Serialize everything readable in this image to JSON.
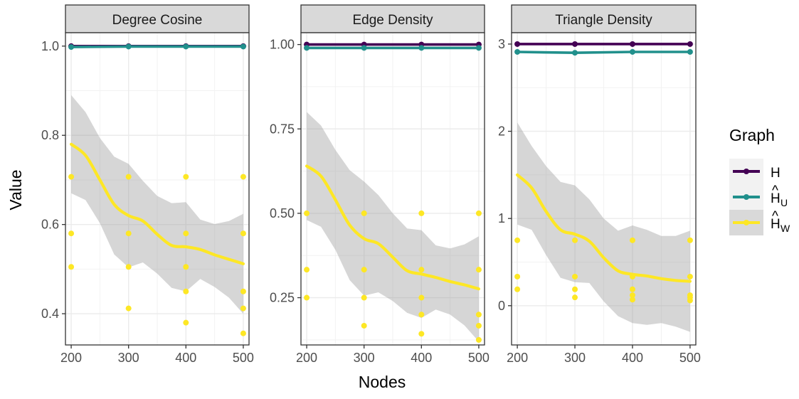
{
  "chart_data": {
    "type": "line",
    "xlabel": "Nodes",
    "ylabel": "Value",
    "legend": {
      "title": "Graph",
      "position": "right",
      "entries": [
        {
          "base": "H",
          "hat": false,
          "sub": "",
          "color": "#440154"
        },
        {
          "base": "H",
          "hat": true,
          "sub": "U",
          "color": "#21908C"
        },
        {
          "base": "H",
          "hat": true,
          "sub": "W",
          "color": "#FDE725"
        }
      ]
    },
    "panels": [
      {
        "title": "Degree Cosine",
        "xlim": [
          190,
          510
        ],
        "ylim": [
          0.33,
          1.03
        ],
        "xticks": [
          200,
          300,
          400,
          500
        ],
        "yticks": [
          0.4,
          0.6,
          0.8,
          1.0
        ],
        "ytick_labels": [
          "0.4",
          "0.6",
          "0.8",
          "1.0"
        ],
        "H": {
          "x": [
            200,
            300,
            400,
            500
          ],
          "y": [
            1.0,
            1.0,
            1.0,
            1.0
          ]
        },
        "HU": {
          "x": [
            200,
            300,
            400,
            500
          ],
          "y": [
            0.998,
            0.999,
            0.999,
            0.999
          ]
        },
        "HW_points": {
          "x": [
            200,
            200,
            200,
            300,
            300,
            300,
            300,
            400,
            400,
            400,
            400,
            400,
            500,
            500,
            500,
            500,
            500
          ],
          "y": [
            0.707,
            0.58,
            0.505,
            0.707,
            0.58,
            0.505,
            0.412,
            0.707,
            0.58,
            0.505,
            0.45,
            0.38,
            0.707,
            0.58,
            0.45,
            0.412,
            0.356
          ]
        },
        "HW_smooth": {
          "x": [
            200,
            225,
            250,
            275,
            300,
            325,
            350,
            375,
            400,
            425,
            450,
            475,
            500
          ],
          "y": [
            0.78,
            0.755,
            0.7,
            0.645,
            0.62,
            0.608,
            0.578,
            0.553,
            0.55,
            0.544,
            0.532,
            0.522,
            0.512
          ]
        },
        "HW_band": {
          "x": [
            200,
            225,
            250,
            275,
            300,
            325,
            350,
            375,
            400,
            425,
            450,
            475,
            500
          ],
          "lower": [
            0.67,
            0.655,
            0.603,
            0.533,
            0.504,
            0.515,
            0.49,
            0.458,
            0.45,
            0.478,
            0.46,
            0.436,
            0.4
          ],
          "upper": [
            0.89,
            0.852,
            0.794,
            0.752,
            0.736,
            0.698,
            0.664,
            0.648,
            0.65,
            0.611,
            0.601,
            0.608,
            0.624
          ]
        }
      },
      {
        "title": "Edge Density",
        "xlim": [
          190,
          510
        ],
        "ylim": [
          0.11,
          1.035
        ],
        "xticks": [
          200,
          300,
          400,
          500
        ],
        "yticks": [
          0.25,
          0.5,
          0.75,
          1.0
        ],
        "ytick_labels": [
          "0.25",
          "0.50",
          "0.75",
          "1.00"
        ],
        "H": {
          "x": [
            200,
            300,
            400,
            500
          ],
          "y": [
            1.0,
            1.0,
            1.0,
            1.0
          ]
        },
        "HU": {
          "x": [
            200,
            300,
            400,
            500
          ],
          "y": [
            0.99,
            0.99,
            0.99,
            0.99
          ]
        },
        "HW_points": {
          "x": [
            200,
            200,
            200,
            300,
            300,
            300,
            300,
            400,
            400,
            400,
            400,
            400,
            500,
            500,
            500,
            500,
            500
          ],
          "y": [
            0.5,
            0.333,
            0.25,
            0.5,
            0.333,
            0.25,
            0.167,
            0.5,
            0.333,
            0.25,
            0.2,
            0.143,
            0.5,
            0.333,
            0.2,
            0.167,
            0.125
          ]
        },
        "HW_smooth": {
          "x": [
            200,
            225,
            250,
            275,
            300,
            325,
            350,
            375,
            400,
            425,
            450,
            475,
            500
          ],
          "y": [
            0.64,
            0.61,
            0.54,
            0.465,
            0.425,
            0.41,
            0.37,
            0.33,
            0.32,
            0.31,
            0.298,
            0.288,
            0.276
          ]
        },
        "HW_band": {
          "x": [
            200,
            225,
            250,
            275,
            300,
            325,
            350,
            375,
            400,
            425,
            450,
            475,
            500
          ],
          "lower": [
            0.48,
            0.46,
            0.392,
            0.302,
            0.256,
            0.266,
            0.24,
            0.205,
            0.19,
            0.215,
            0.2,
            0.168,
            0.12
          ],
          "upper": [
            0.8,
            0.76,
            0.688,
            0.628,
            0.594,
            0.554,
            0.5,
            0.455,
            0.45,
            0.405,
            0.396,
            0.408,
            0.432
          ]
        }
      },
      {
        "title": "Triangle Density",
        "xlim": [
          190,
          510
        ],
        "ylim": [
          -0.45,
          3.13
        ],
        "xticks": [
          200,
          300,
          400,
          500
        ],
        "yticks": [
          0,
          1,
          2,
          3
        ],
        "ytick_labels": [
          "0",
          "1",
          "2",
          "3"
        ],
        "H": {
          "x": [
            200,
            300,
            400,
            500
          ],
          "y": [
            3.0,
            3.0,
            3.0,
            3.0
          ]
        },
        "HU": {
          "x": [
            200,
            300,
            400,
            500
          ],
          "y": [
            2.91,
            2.9,
            2.91,
            2.91
          ]
        },
        "HW_points": {
          "x": [
            200,
            200,
            200,
            300,
            300,
            300,
            300,
            400,
            400,
            400,
            400,
            400,
            500,
            500,
            500,
            500,
            500
          ],
          "y": [
            0.75,
            0.333,
            0.188,
            0.75,
            0.333,
            0.188,
            0.095,
            0.75,
            0.333,
            0.188,
            0.12,
            0.07,
            0.75,
            0.333,
            0.12,
            0.095,
            0.06
          ]
        },
        "HW_smooth": {
          "x": [
            200,
            225,
            250,
            275,
            300,
            325,
            350,
            375,
            400,
            425,
            450,
            475,
            500
          ],
          "y": [
            1.5,
            1.35,
            1.08,
            0.87,
            0.82,
            0.74,
            0.55,
            0.4,
            0.36,
            0.34,
            0.31,
            0.29,
            0.28
          ]
        },
        "HW_band": {
          "x": [
            200,
            225,
            250,
            275,
            300,
            325,
            350,
            375,
            400,
            425,
            450,
            475,
            500
          ],
          "lower": [
            0.93,
            0.87,
            0.58,
            0.32,
            0.27,
            0.26,
            0.05,
            -0.12,
            -0.2,
            -0.22,
            -0.2,
            -0.24,
            -0.3
          ],
          "upper": [
            2.1,
            1.83,
            1.6,
            1.42,
            1.38,
            1.22,
            1.0,
            0.86,
            0.92,
            0.87,
            0.8,
            0.8,
            0.86
          ]
        }
      }
    ]
  }
}
